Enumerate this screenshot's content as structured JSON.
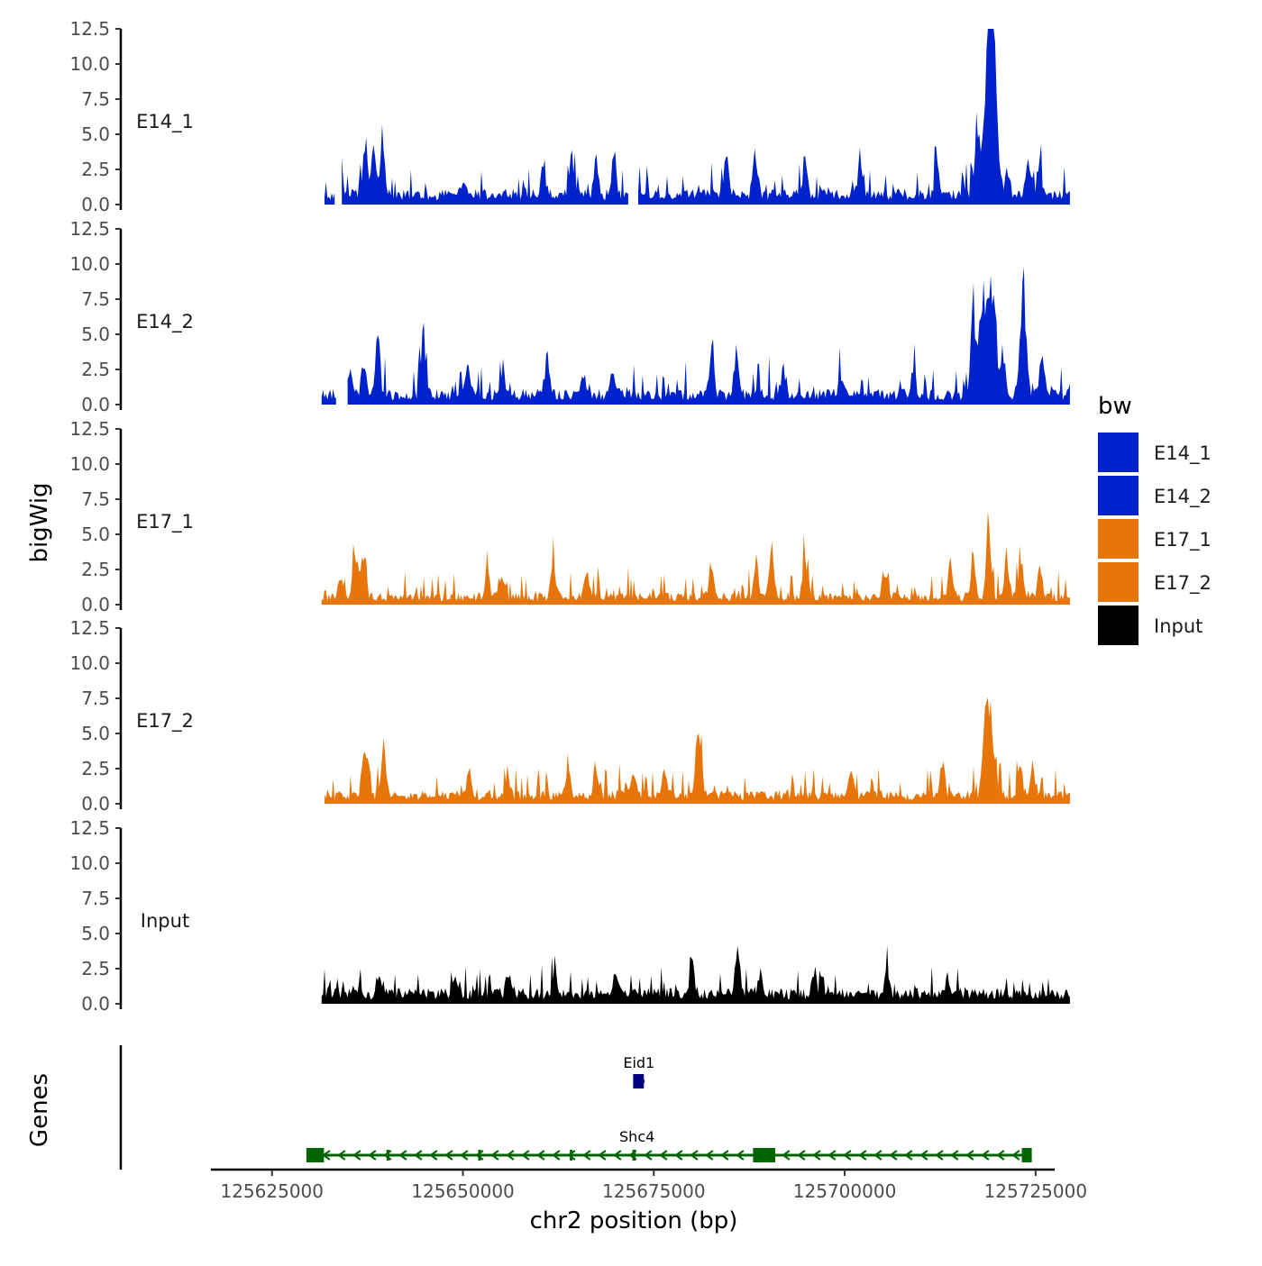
{
  "chart_data": {
    "type": "area",
    "ylabel": "bigWig",
    "xlabel": "chr2 position (bp)",
    "ylim": [
      0,
      12.5
    ],
    "y_ticks": [
      "0.0",
      "2.5",
      "5.0",
      "7.5",
      "10.0",
      "12.5"
    ],
    "y_tick_values": [
      0,
      2.5,
      5,
      7.5,
      10,
      12.5
    ],
    "xlim": [
      125617000,
      125727500
    ],
    "x_ticks": [
      "125625000",
      "125650000",
      "125675000",
      "125700000",
      "125725000"
    ],
    "x_tick_values": [
      125625000,
      125650000,
      125675000,
      125700000,
      125725000
    ],
    "track_x_range": [
      125631500,
      125729500
    ],
    "series": [
      {
        "name": "E14_1",
        "color": "#0022CC",
        "seed": 11,
        "base": 0.9,
        "noise": 1.1,
        "gaps": [
          [
            125631500,
            125631700
          ],
          [
            125633200,
            125634000
          ],
          [
            125671800,
            125672800
          ]
        ],
        "peaks": [
          [
            125634100,
            1.1
          ],
          [
            125637200,
            3.9
          ],
          [
            125638300,
            3.2
          ],
          [
            125639500,
            3.6
          ],
          [
            125650000,
            1.2
          ],
          [
            125660500,
            2.6
          ],
          [
            125664200,
            3.2
          ],
          [
            125667500,
            2.3
          ],
          [
            125669800,
            3.0
          ],
          [
            125684500,
            2.8
          ],
          [
            125688300,
            3.1
          ],
          [
            125694800,
            2.6
          ],
          [
            125702000,
            2.7
          ],
          [
            125712100,
            2.2
          ],
          [
            125717400,
            4.8
          ],
          [
            125718800,
            11.0
          ],
          [
            125719500,
            9.5
          ],
          [
            125721300,
            2.2
          ],
          [
            125724000,
            2.7
          ],
          [
            125725500,
            2.4
          ]
        ]
      },
      {
        "name": "E14_2",
        "color": "#0022CC",
        "seed": 23,
        "base": 0.9,
        "noise": 1.2,
        "gaps": [
          [
            125633400,
            125634800
          ]
        ],
        "peaks": [
          [
            125635200,
            2.0
          ],
          [
            125637000,
            2.4
          ],
          [
            125638800,
            3.8
          ],
          [
            125644800,
            5.2
          ],
          [
            125650700,
            2.1
          ],
          [
            125655200,
            1.8
          ],
          [
            125661000,
            2.6
          ],
          [
            125665800,
            1.6
          ],
          [
            125669600,
            2.0
          ],
          [
            125682600,
            3.5
          ],
          [
            125685800,
            3.0
          ],
          [
            125692000,
            2.2
          ],
          [
            125699500,
            1.5
          ],
          [
            125709000,
            2.0
          ],
          [
            125716800,
            6.0
          ],
          [
            125718100,
            7.2
          ],
          [
            125719300,
            7.5
          ],
          [
            125720800,
            3.0
          ],
          [
            125723100,
            4.5
          ],
          [
            125723600,
            5.2
          ],
          [
            125725800,
            3.5
          ]
        ]
      },
      {
        "name": "E17_1",
        "color": "#E8750A",
        "seed": 37,
        "base": 0.7,
        "noise": 1.0,
        "gaps": [],
        "peaks": [
          [
            125633900,
            1.6
          ],
          [
            125635900,
            3.2
          ],
          [
            125637000,
            3.4
          ],
          [
            125653200,
            2.2
          ],
          [
            125655200,
            1.7
          ],
          [
            125661800,
            2.8
          ],
          [
            125666200,
            2.0
          ],
          [
            125682500,
            2.2
          ],
          [
            125688400,
            3.0
          ],
          [
            125690400,
            4.0
          ],
          [
            125694800,
            2.9
          ],
          [
            125705200,
            1.5
          ],
          [
            125713800,
            2.5
          ],
          [
            125716800,
            3.0
          ],
          [
            125718900,
            5.0
          ],
          [
            125721200,
            2.5
          ],
          [
            125723100,
            3.0
          ],
          [
            125725600,
            2.2
          ]
        ]
      },
      {
        "name": "E17_2",
        "color": "#E8750A",
        "seed": 53,
        "base": 0.75,
        "noise": 1.1,
        "gaps": [
          [
            125631500,
            125631800
          ]
        ],
        "peaks": [
          [
            125637000,
            2.8
          ],
          [
            125637500,
            2.6
          ],
          [
            125639600,
            3.8
          ],
          [
            125650800,
            1.6
          ],
          [
            125655800,
            1.8
          ],
          [
            125663800,
            1.8
          ],
          [
            125667400,
            2.1
          ],
          [
            125672300,
            2.0
          ],
          [
            125676400,
            2.0
          ],
          [
            125680600,
            3.2
          ],
          [
            125681100,
            2.8
          ],
          [
            125700800,
            1.8
          ],
          [
            125712800,
            3.0
          ],
          [
            125718300,
            2.6
          ],
          [
            125718900,
            7.2
          ],
          [
            125723000,
            2.2
          ],
          [
            125724600,
            2.2
          ]
        ]
      },
      {
        "name": "Input",
        "color": "#000000",
        "seed": 71,
        "base": 0.9,
        "noise": 0.9,
        "gaps": [],
        "peaks": [
          [
            125639000,
            1.4
          ],
          [
            125649000,
            1.2
          ],
          [
            125656000,
            1.7
          ],
          [
            125662000,
            1.6
          ],
          [
            125670000,
            1.7
          ],
          [
            125680000,
            2.0
          ],
          [
            125686000,
            3.4
          ],
          [
            125689000,
            1.6
          ],
          [
            125696000,
            1.8
          ],
          [
            125705500,
            1.5
          ],
          [
            125713500,
            1.2
          ]
        ]
      }
    ],
    "legend": {
      "title": "bw",
      "entries": [
        {
          "label": "E14_1",
          "color": "#0022CC"
        },
        {
          "label": "E14_2",
          "color": "#0022CC"
        },
        {
          "label": "E17_1",
          "color": "#E8750A"
        },
        {
          "label": "E17_2",
          "color": "#E8750A"
        },
        {
          "label": "Input",
          "color": "#000000"
        }
      ]
    },
    "genes_track": {
      "label": "Genes",
      "genes": [
        {
          "name": "Eid1",
          "color": "#000080",
          "strand": "+",
          "start": 125672300,
          "end": 125673800,
          "exons": [
            [
              125672300,
              125673700
            ]
          ],
          "row": "upper"
        },
        {
          "name": "Shc4",
          "color": "#006400",
          "strand": "-",
          "start": 125629500,
          "end": 125724500,
          "exons": [
            [
              125629500,
              125631800
            ],
            [
              125640000,
              125640300
            ],
            [
              125652000,
              125652300
            ],
            [
              125664000,
              125664300
            ],
            [
              125672200,
              125672600
            ],
            [
              125688000,
              125690900
            ],
            [
              125723200,
              125724500
            ]
          ],
          "row": "lower"
        }
      ]
    }
  }
}
